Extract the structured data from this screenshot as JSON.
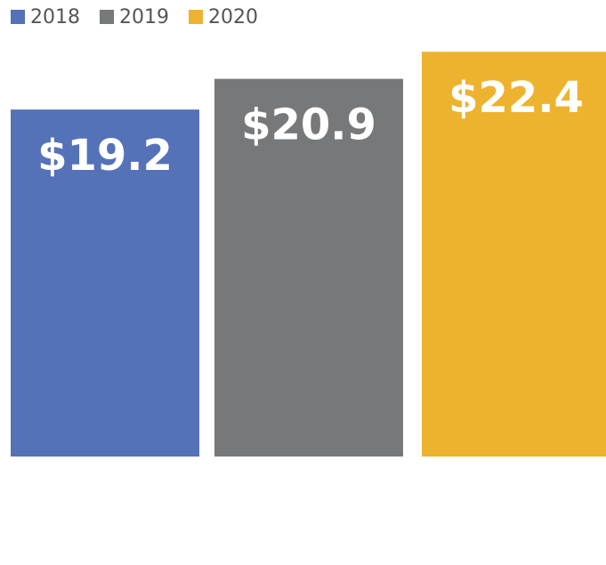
{
  "chart_data": {
    "type": "bar",
    "series": [
      {
        "name": "2018",
        "color": "#5572b8",
        "values": [
          19.2
        ],
        "value_labels": [
          "$19.2"
        ]
      },
      {
        "name": "2019",
        "color": "#77787a",
        "values": [
          20.9
        ],
        "value_labels": [
          "$20.9"
        ]
      },
      {
        "name": "2020",
        "color": "#eeb32e",
        "values": [
          22.4
        ],
        "value_labels": [
          "$22.4"
        ]
      }
    ],
    "ylim": [
      -6,
      22.8
    ]
  }
}
